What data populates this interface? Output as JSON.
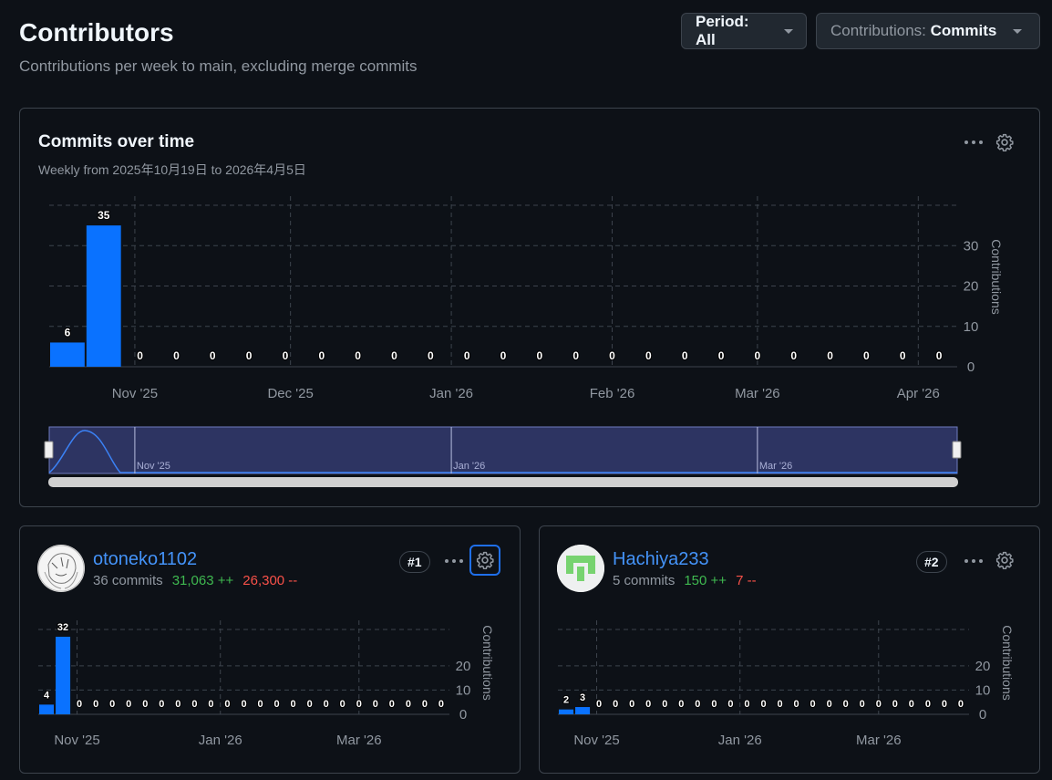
{
  "header": {
    "title": "Contributors",
    "subtitle": "Contributions per week to main, excluding merge commits",
    "period_prefix": "Period: ",
    "period_value": "All",
    "contrib_prefix": "Contributions: ",
    "contrib_value": "Commits"
  },
  "main_chart": {
    "title": "Commits over time",
    "subtitle": "Weekly from 2025年10月19日 to 2026年4月5日",
    "navigator_labels": [
      "Nov '25",
      "Jan '26",
      "Mar '26"
    ]
  },
  "contributors": [
    {
      "name": "otoneko1102",
      "commits": "36 commits",
      "additions": "31,063 ++",
      "deletions": "26,300 --",
      "rank": "#1"
    },
    {
      "name": "Hachiya233",
      "commits": "5 commits",
      "additions": "150 ++",
      "deletions": "7 --",
      "rank": "#2"
    }
  ],
  "colors": {
    "bar": "#0a72ff",
    "link": "#4493f8",
    "add": "#3fb950",
    "del": "#f85149",
    "grid": "#3d444d"
  },
  "icons": {
    "kebab": "kebab-horizontal-icon",
    "gear": "gear-icon",
    "caret": "triangle-down-icon"
  },
  "chart_data": [
    {
      "type": "bar",
      "x": [
        "2025-10-19",
        "2025-10-26",
        "2025-11-02",
        "2025-11-09",
        "2025-11-16",
        "2025-11-23",
        "2025-11-30",
        "2025-12-07",
        "2025-12-14",
        "2025-12-21",
        "2025-12-28",
        "2026-01-04",
        "2026-01-11",
        "2026-01-18",
        "2026-01-25",
        "2026-02-01",
        "2026-02-08",
        "2026-02-15",
        "2026-02-22",
        "2026-03-01",
        "2026-03-08",
        "2026-03-15",
        "2026-03-22",
        "2026-03-29",
        "2026-04-05"
      ],
      "values": [
        6,
        35,
        0,
        0,
        0,
        0,
        0,
        0,
        0,
        0,
        0,
        0,
        0,
        0,
        0,
        0,
        0,
        0,
        0,
        0,
        0,
        0,
        0,
        0,
        0
      ],
      "xticks": [
        "Nov '25",
        "Dec '25",
        "Jan '26",
        "Feb '26",
        "Mar '26",
        "Apr '26"
      ],
      "yticks": [
        0,
        10,
        20,
        30
      ],
      "ylabel": "Contributions",
      "ylim": [
        0,
        40
      ]
    },
    {
      "type": "bar",
      "x": [
        "2025-10-19",
        "2025-10-26",
        "2025-11-02",
        "2025-11-09",
        "2025-11-16",
        "2025-11-23",
        "2025-11-30",
        "2025-12-07",
        "2025-12-14",
        "2025-12-21",
        "2025-12-28",
        "2026-01-04",
        "2026-01-11",
        "2026-01-18",
        "2026-01-25",
        "2026-02-01",
        "2026-02-08",
        "2026-02-15",
        "2026-02-22",
        "2026-03-01",
        "2026-03-08",
        "2026-03-15",
        "2026-03-22",
        "2026-03-29",
        "2026-04-05"
      ],
      "values": [
        4,
        32,
        0,
        0,
        0,
        0,
        0,
        0,
        0,
        0,
        0,
        0,
        0,
        0,
        0,
        0,
        0,
        0,
        0,
        0,
        0,
        0,
        0,
        0,
        0
      ],
      "xticks": [
        "Nov '25",
        "Jan '26",
        "Mar '26"
      ],
      "yticks": [
        0,
        10,
        20
      ],
      "ylabel": "Contributions",
      "ylim": [
        0,
        35
      ]
    },
    {
      "type": "bar",
      "x": [
        "2025-10-19",
        "2025-10-26",
        "2025-11-02",
        "2025-11-09",
        "2025-11-16",
        "2025-11-23",
        "2025-11-30",
        "2025-12-07",
        "2025-12-14",
        "2025-12-21",
        "2025-12-28",
        "2026-01-04",
        "2026-01-11",
        "2026-01-18",
        "2026-01-25",
        "2026-02-01",
        "2026-02-08",
        "2026-02-15",
        "2026-02-22",
        "2026-03-01",
        "2026-03-08",
        "2026-03-15",
        "2026-03-22",
        "2026-03-29",
        "2026-04-05"
      ],
      "values": [
        2,
        3,
        0,
        0,
        0,
        0,
        0,
        0,
        0,
        0,
        0,
        0,
        0,
        0,
        0,
        0,
        0,
        0,
        0,
        0,
        0,
        0,
        0,
        0,
        0
      ],
      "xticks": [
        "Nov '25",
        "Jan '26",
        "Mar '26"
      ],
      "yticks": [
        0,
        10,
        20
      ],
      "ylabel": "Contributions",
      "ylim": [
        0,
        35
      ]
    }
  ]
}
